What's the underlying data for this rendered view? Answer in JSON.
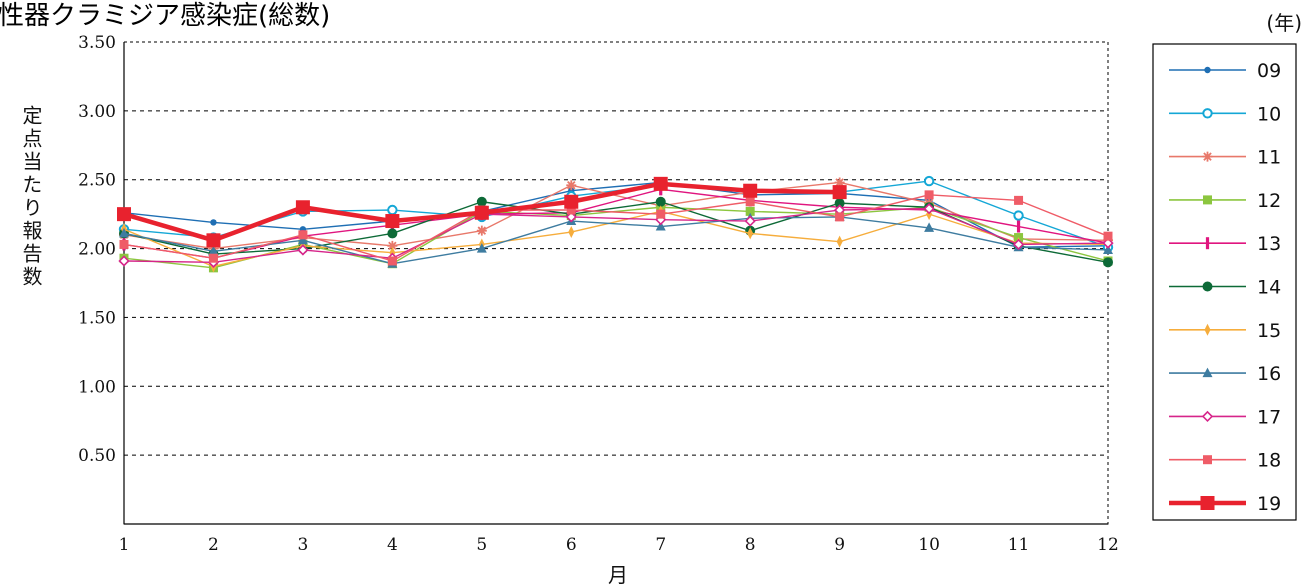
{
  "chart_data": {
    "type": "line",
    "title": "性器クラミジア感染症(総数)",
    "unit_label": "(年)",
    "xlabel": "月",
    "ylabel": "定点当たり報告数",
    "x": [
      1,
      2,
      3,
      4,
      5,
      6,
      7,
      8,
      9,
      10,
      11,
      12
    ],
    "x_tick_labels": [
      "1",
      "2",
      "3",
      "4",
      "5",
      "6",
      "7",
      "8",
      "9",
      "10",
      "11",
      "12"
    ],
    "y_ticks": [
      0.5,
      1.0,
      1.5,
      2.0,
      2.5,
      3.0,
      3.5
    ],
    "y_tick_labels": [
      "0.50",
      "1.00",
      "1.50",
      "2.00",
      "2.50",
      "3.00",
      "3.50"
    ],
    "ylim": [
      0,
      3.5
    ],
    "grid": "horizontal dashed",
    "legend_position": "right",
    "series": [
      {
        "name": "09",
        "color": "#1f6fb4",
        "marker": "dot",
        "values": [
          2.26,
          2.19,
          2.14,
          2.2,
          2.27,
          2.42,
          2.48,
          2.39,
          2.4,
          2.35,
          2.01,
          2.02
        ]
      },
      {
        "name": "10",
        "color": "#14a7d6",
        "marker": "circle-open",
        "values": [
          2.14,
          2.08,
          2.27,
          2.28,
          2.23,
          2.38,
          2.46,
          2.42,
          2.41,
          2.49,
          2.24,
          2.01
        ]
      },
      {
        "name": "11",
        "color": "#e8786a",
        "marker": "asterisk",
        "values": [
          2.1,
          2.0,
          2.08,
          2.02,
          2.13,
          2.46,
          2.31,
          2.41,
          2.48,
          2.33,
          2.07,
          2.06
        ]
      },
      {
        "name": "12",
        "color": "#8cc63f",
        "marker": "square",
        "values": [
          1.93,
          1.86,
          2.03,
          1.89,
          2.27,
          2.24,
          2.3,
          2.27,
          2.25,
          2.3,
          2.08,
          1.91
        ]
      },
      {
        "name": "13",
        "color": "#e0157f",
        "marker": "bar",
        "values": [
          2.03,
          1.93,
          2.09,
          2.17,
          2.25,
          2.26,
          2.43,
          2.35,
          2.3,
          2.28,
          2.16,
          2.04
        ]
      },
      {
        "name": "14",
        "color": "#0d6a37",
        "marker": "dot-large",
        "values": [
          2.11,
          1.96,
          2.0,
          2.11,
          2.34,
          2.25,
          2.34,
          2.13,
          2.33,
          2.3,
          2.02,
          1.9
        ]
      },
      {
        "name": "15",
        "color": "#f6ad3c",
        "marker": "diamond",
        "values": [
          2.14,
          1.87,
          2.02,
          1.97,
          2.03,
          2.12,
          2.27,
          2.11,
          2.05,
          2.25,
          2.04,
          2.03
        ]
      },
      {
        "name": "16",
        "color": "#3e7ca0",
        "marker": "triangle",
        "values": [
          2.11,
          1.98,
          2.06,
          1.89,
          2.0,
          2.2,
          2.16,
          2.22,
          2.23,
          2.15,
          2.01,
          1.99
        ]
      },
      {
        "name": "17",
        "color": "#d6258a",
        "marker": "diamond-open",
        "values": [
          1.91,
          1.9,
          1.99,
          1.93,
          2.25,
          2.23,
          2.21,
          2.2,
          2.28,
          2.29,
          2.03,
          2.04
        ]
      },
      {
        "name": "18",
        "color": "#ef5c67",
        "marker": "square",
        "values": [
          2.03,
          1.93,
          2.1,
          1.91,
          2.28,
          2.28,
          2.25,
          2.34,
          2.23,
          2.39,
          2.35,
          2.09
        ]
      },
      {
        "name": "19",
        "color": "#e8222e",
        "marker": "square-large",
        "bold": true,
        "values": [
          2.25,
          2.06,
          2.3,
          2.2,
          2.26,
          2.34,
          2.47,
          2.42,
          2.41,
          null,
          null,
          null
        ]
      }
    ]
  }
}
